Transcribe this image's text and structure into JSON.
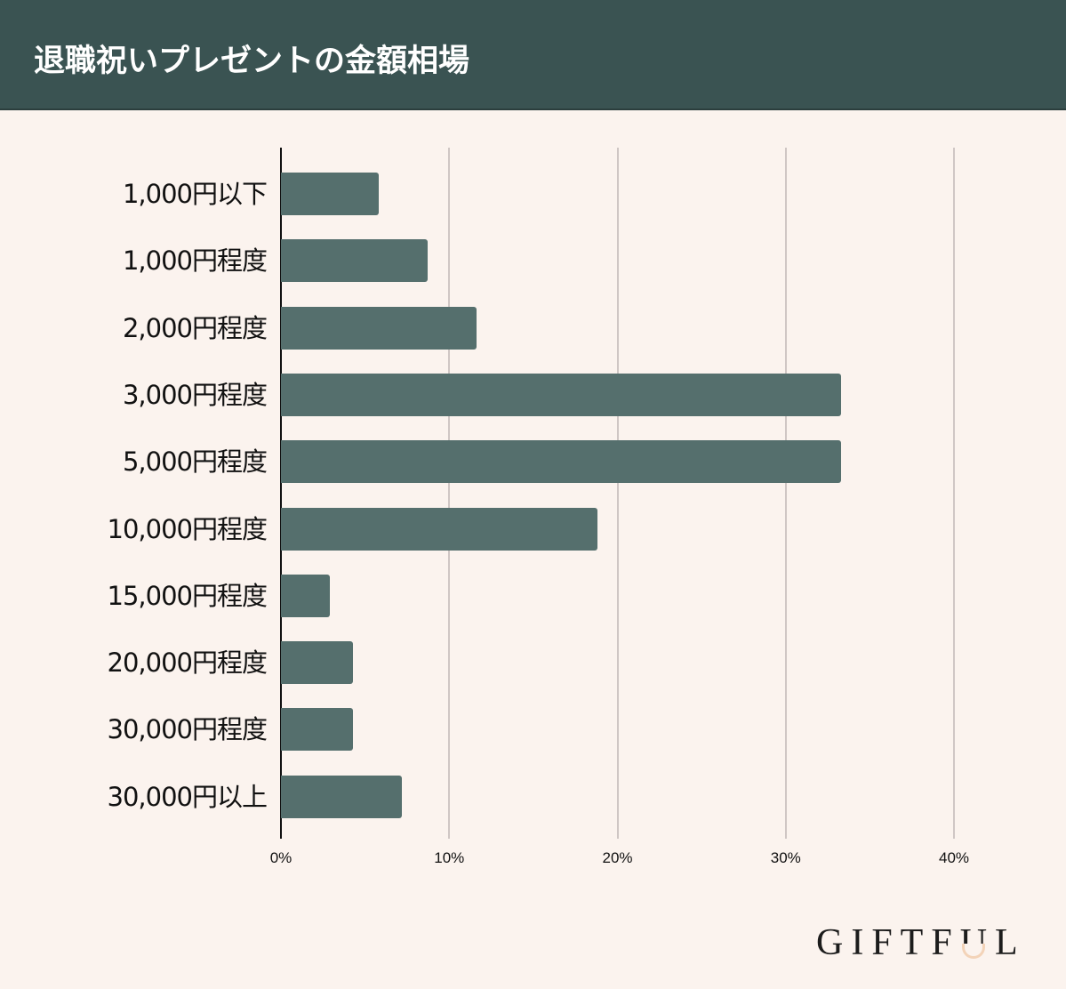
{
  "header": {
    "title": "退職祝いプレゼントの金額相場"
  },
  "colors": {
    "header_bg": "#3a5352",
    "bar": "#556f6d",
    "background": "#fbf3ee",
    "gridline": "#cfc6c4",
    "logo_accent": "#f3d3b8"
  },
  "logo": {
    "text": "GIFTFUL",
    "parts": [
      "GIFTF",
      "U",
      "L"
    ]
  },
  "chart_data": {
    "type": "bar",
    "orientation": "horizontal",
    "title": "退職祝いプレゼントの金額相場",
    "xlabel": "",
    "ylabel": "",
    "categories": [
      "1,000円以下",
      "1,000円程度",
      "2,000円程度",
      "3,000円程度",
      "5,000円程度",
      "10,000円程度",
      "15,000円程度",
      "20,000円程度",
      "30,000円程度",
      "30,000円以上"
    ],
    "values": [
      5.8,
      8.7,
      11.6,
      33.3,
      33.3,
      18.8,
      2.9,
      4.3,
      4.3,
      7.2
    ],
    "unit": "%",
    "xlim": [
      0,
      40
    ],
    "xticks": [
      "0%",
      "10%",
      "20%",
      "30%",
      "40%"
    ],
    "grid": true,
    "legend": null
  }
}
